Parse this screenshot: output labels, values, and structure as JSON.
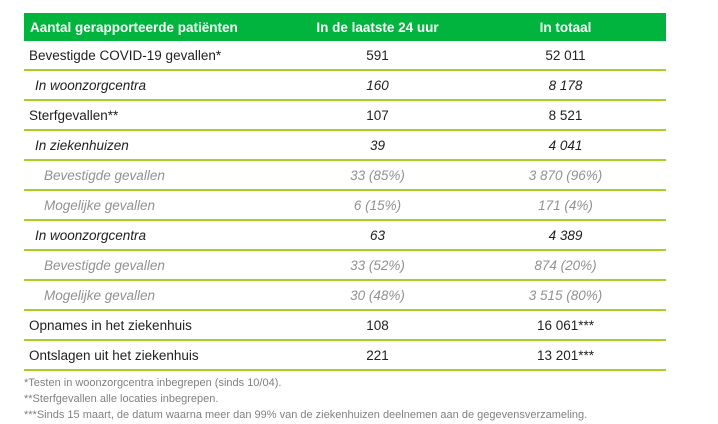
{
  "colors": {
    "header-green": "#00b43e",
    "line-green": "#a6d122",
    "text-black": "#1f1f1f",
    "gray-text": "#919191",
    "footnote-gray": "#808080"
  },
  "table": {
    "headers": {
      "label": "Aantal gerapporteerde patiënten",
      "last24h": "In de laatste 24 uur",
      "total": "In totaal"
    },
    "rows": [
      {
        "label": "Bevestigde COVID-19 gevallen*",
        "last24h": "591",
        "total": "52 011",
        "level": 0
      },
      {
        "label": "In woonzorgcentra",
        "last24h": "160",
        "total": "8 178",
        "level": 1
      },
      {
        "label": "Sterfgevallen**",
        "last24h": "107",
        "total": "8 521",
        "level": 0
      },
      {
        "label": "In ziekenhuizen",
        "last24h": "39",
        "total": "4 041",
        "level": 1
      },
      {
        "label": "Bevestigde gevallen",
        "last24h": "33 (85%)",
        "total": "3 870 (96%)",
        "level": 2
      },
      {
        "label": "Mogelijke gevallen",
        "last24h": "6 (15%)",
        "total": "171 (4%)",
        "level": 2
      },
      {
        "label": "In woonzorgcentra",
        "last24h": "63",
        "total": "4 389",
        "level": 1
      },
      {
        "label": "Bevestigde gevallen",
        "last24h": "33 (52%)",
        "total": "874 (20%)",
        "level": 2
      },
      {
        "label": "Mogelijke gevallen",
        "last24h": "30 (48%)",
        "total": "3 515 (80%)",
        "level": 2
      },
      {
        "label": "Opnames in het ziekenhuis",
        "last24h": "108",
        "total": "16 061***",
        "level": 0
      },
      {
        "label": "Ontslagen uit het ziekenhuis",
        "last24h": "221",
        "total": "13 201***",
        "level": 0
      }
    ]
  },
  "footnotes": [
    "*Testen in woonzorgcentra inbegrepen (sinds 10/04).",
    "**Sterfgevallen alle locaties inbegrepen.",
    "***Sinds 15 maart, de datum waarna meer dan 99% van de ziekenhuizen deelnemen aan de gegevensverzameling."
  ]
}
